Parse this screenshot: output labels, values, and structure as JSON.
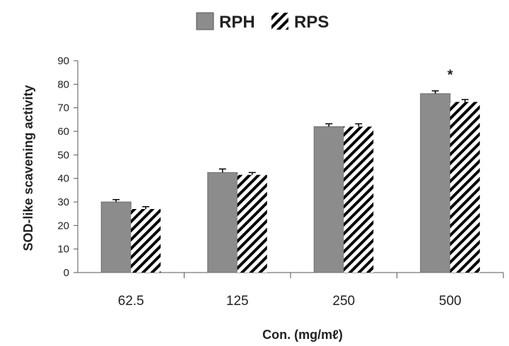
{
  "chart_data": {
    "type": "bar",
    "categories": [
      "62.5",
      "125",
      "250",
      "500"
    ],
    "series": [
      {
        "name": "RPH",
        "values": [
          30,
          42.5,
          62,
          76
        ],
        "errors": [
          1,
          1.5,
          1.2,
          1.2
        ],
        "color": "#8c8c8c",
        "pattern": "solid"
      },
      {
        "name": "RPS",
        "values": [
          27,
          41.5,
          62,
          72.5
        ],
        "errors": [
          1,
          1,
          1.2,
          1
        ],
        "color": "#000000",
        "pattern": "diagonal-hatch"
      }
    ],
    "ylabel": "SOD-like  scavening activity",
    "xlabel": "Con. (mg/mℓ)",
    "ylim": [
      0,
      90
    ],
    "yticks": [
      0,
      10,
      20,
      30,
      40,
      50,
      60,
      70,
      80,
      90
    ],
    "legend_position": "top-center",
    "grid": false,
    "annotations": [
      {
        "category": "500",
        "text": "*"
      }
    ]
  }
}
